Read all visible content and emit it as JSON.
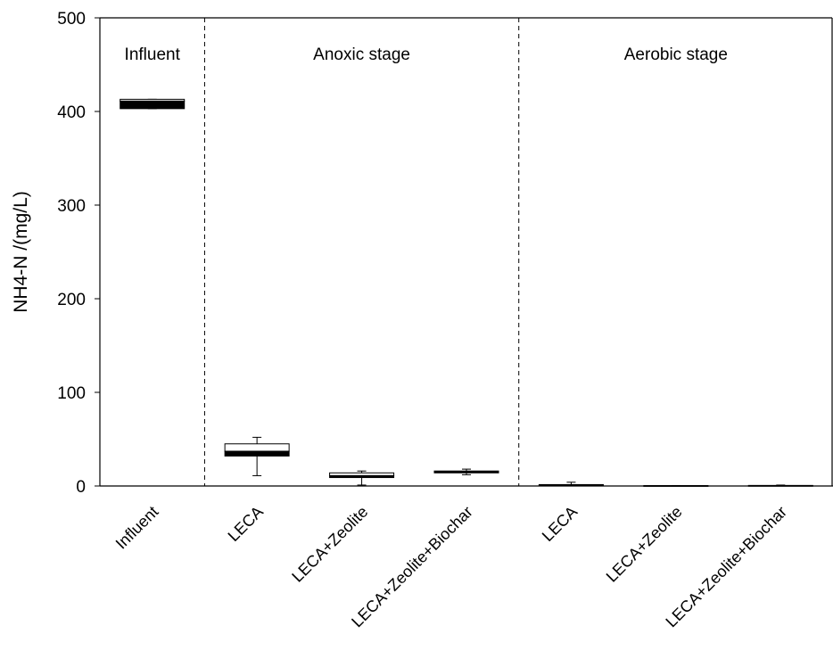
{
  "chart_data": {
    "type": "box",
    "title": "",
    "xlabel": "",
    "ylabel": "NH4-N /(mg/L)",
    "ylim": [
      0,
      500
    ],
    "yticks": [
      "0",
      "100",
      "200",
      "300",
      "400",
      "500"
    ],
    "grid": false,
    "legend": "none",
    "categories": [
      "Influent",
      "LECA",
      "LECA+Zeolite",
      "LECA+Zeolite+Biochar",
      "LECA",
      "LECA+Zeolite",
      "LECA+Zeolite+Biochar"
    ],
    "regions": [
      {
        "label": "Influent",
        "from": 0,
        "to": 0
      },
      {
        "label": "Anoxic stage",
        "from": 1,
        "to": 3
      },
      {
        "label": "Aerobic stage",
        "from": 4,
        "to": 6
      }
    ],
    "boxes": [
      {
        "category": "Influent",
        "min": 403,
        "q1": 403,
        "median": 411,
        "q3": 413,
        "max": 413
      },
      {
        "category": "LECA",
        "min": 11,
        "q1": 32,
        "median": 37,
        "q3": 45,
        "max": 52
      },
      {
        "category": "LECA+Zeolite",
        "min": 1,
        "q1": 9,
        "median": 11,
        "q3": 14,
        "max": 16
      },
      {
        "category": "LECA+Zeolite+Biochar",
        "min": 12,
        "q1": 14,
        "median": 15,
        "q3": 16,
        "max": 18
      },
      {
        "category": "LECA",
        "min": 0,
        "q1": 0.5,
        "median": 1,
        "q3": 1.5,
        "max": 4
      },
      {
        "category": "LECA+Zeolite",
        "min": 0,
        "q1": 0,
        "median": 0.2,
        "q3": 0.4,
        "max": 0.5
      },
      {
        "category": "LECA+Zeolite+Biochar",
        "min": 0,
        "q1": 0,
        "median": 0.3,
        "q3": 0.6,
        "max": 1
      }
    ],
    "colors": {
      "box_fill": "#ffffff",
      "median_fill": "#000000",
      "stroke": "#000000"
    }
  }
}
